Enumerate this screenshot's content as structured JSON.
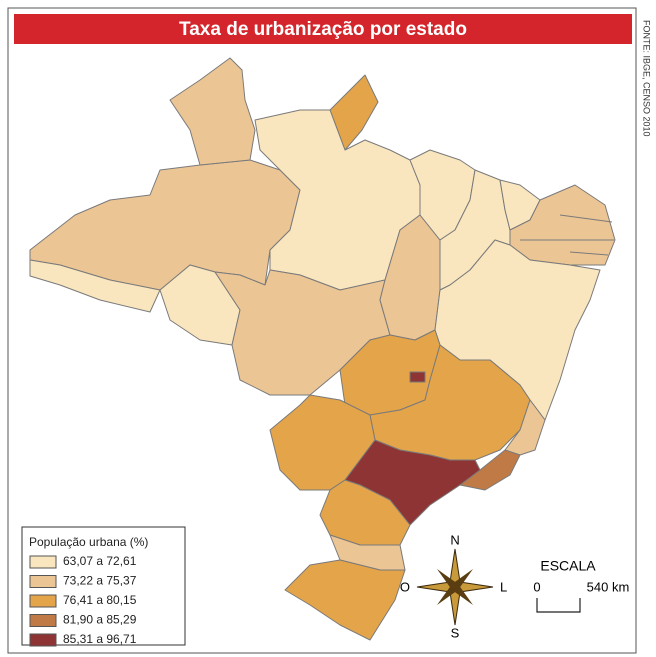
{
  "title": "Taxa de urbanização por estado",
  "source": "FONTE: IBGE, CENSO 2010",
  "legend": {
    "title": "População urbana (%)",
    "items": [
      {
        "label": "63,07 a 72,61",
        "color": "#f9e6bf"
      },
      {
        "label": "73,22 a 75,37",
        "color": "#ecc595"
      },
      {
        "label": "76,41 a 80,15",
        "color": "#e3a44a"
      },
      {
        "label": "81,90 a 85,29",
        "color": "#c07a45"
      },
      {
        "label": "85,31 a 96,71",
        "color": "#8e3434"
      }
    ]
  },
  "compass": {
    "n": "N",
    "s": "S",
    "l": "L",
    "o": "O"
  },
  "scale": {
    "title": "ESCALA",
    "start": "0",
    "end": "540 km"
  }
}
